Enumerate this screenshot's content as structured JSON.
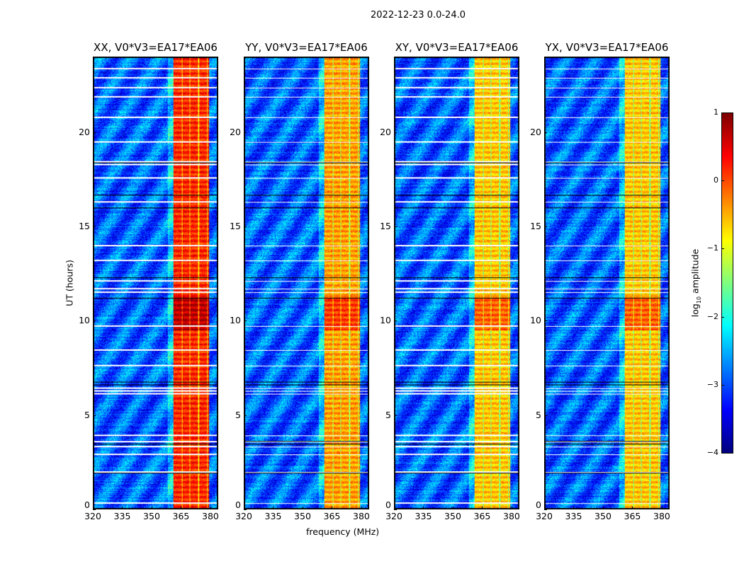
{
  "suptitle": "2022-12-23 0.0-24.0",
  "chart_data": {
    "type": "heatmap",
    "xlabel": "frequency (MHz)",
    "ylabel": "UT (hours)",
    "xlim": [
      320,
      384
    ],
    "ylim": [
      0,
      24
    ],
    "xticks": [
      "320",
      "335",
      "350",
      "365",
      "380"
    ],
    "xtick_values": [
      320,
      335,
      350,
      365,
      380
    ],
    "yticks": [
      "0",
      "5",
      "10",
      "15",
      "20"
    ],
    "ytick_values": [
      0,
      5,
      10,
      15,
      20
    ],
    "panels": [
      {
        "title": "XX, V0*V3=EA17*EA06",
        "band_level": 0.2
      },
      {
        "title": "YY, V0*V3=EA17*EA06",
        "band_level": -0.4
      },
      {
        "title": "XY, V0*V3=EA17*EA06",
        "band_level": -0.6
      },
      {
        "title": "YX, V0*V3=EA17*EA06",
        "band_level": -0.6
      }
    ],
    "rfi_band_mhz": [
      361,
      379.5
    ],
    "subband_edges_mhz": [
      365.5,
      369.5,
      374,
      378.5
    ],
    "background_level": -2.9,
    "high_activity_hours": [
      9.5,
      11.3
    ],
    "flagged_hours": [
      0.3,
      1.95,
      2.9,
      3.3,
      3.55,
      3.9,
      6.1,
      6.25,
      6.4,
      7.6,
      8.45,
      9.7,
      11.5,
      11.7,
      12.1,
      13.2,
      14.0,
      16.3,
      17.6,
      18.3,
      18.45,
      19.5,
      20.8,
      21.9,
      22.4,
      22.9,
      23.4
    ],
    "dark_hours": [
      1.9,
      3.45,
      3.6,
      6.6,
      6.75,
      11.2,
      12.3,
      16.0,
      16.7,
      18.4
    ],
    "colorbar": {
      "label_main": "log",
      "label_sub": "10",
      "label_rest": " amplitude",
      "ticks": [
        "1",
        "0",
        "−1",
        "−2",
        "−3",
        "−4"
      ],
      "tick_values": [
        1,
        0,
        -1,
        -2,
        -3,
        -4
      ],
      "range": [
        -4,
        1
      ],
      "colormap": "jet"
    }
  }
}
